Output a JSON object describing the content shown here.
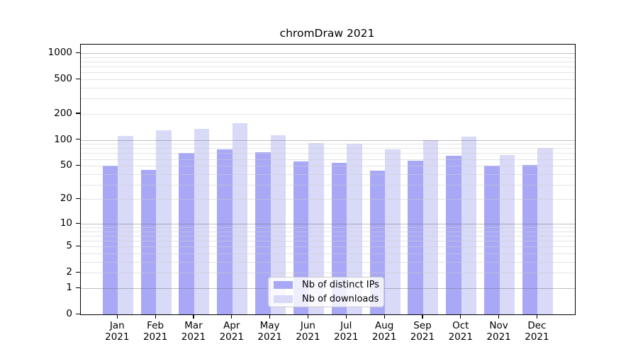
{
  "chart_data": {
    "type": "bar",
    "title": "chromDraw 2021",
    "categories": [
      "Jan",
      "Feb",
      "Mar",
      "Apr",
      "May",
      "Jun",
      "Jul",
      "Aug",
      "Sep",
      "Oct",
      "Nov",
      "Dec"
    ],
    "category_sublabel": "2021",
    "series": [
      {
        "name": "Nb of distinct IPs",
        "color": "#a8a8f6",
        "values": [
          50,
          45,
          71,
          78,
          72,
          56,
          54,
          44,
          57,
          66,
          50,
          51
        ]
      },
      {
        "name": "Nb of downloads",
        "color": "#d9d9f8",
        "values": [
          112,
          130,
          135,
          156,
          114,
          92,
          90,
          78,
          100,
          110,
          67,
          81
        ]
      }
    ],
    "y_axis": {
      "scale": "log1p",
      "ticks": [
        0,
        1,
        2,
        5,
        10,
        20,
        50,
        100,
        200,
        500,
        1000
      ],
      "range": [
        0,
        1259
      ],
      "major_gridlines": [
        1,
        10,
        100,
        1000
      ],
      "minor_gridlines": [
        2,
        3,
        4,
        5,
        6,
        7,
        8,
        9,
        20,
        30,
        40,
        50,
        60,
        70,
        80,
        90,
        200,
        300,
        400,
        500,
        600,
        700,
        800,
        900
      ]
    },
    "x_axis": {
      "label": ""
    },
    "grid": true,
    "legend_position": "lower center"
  }
}
